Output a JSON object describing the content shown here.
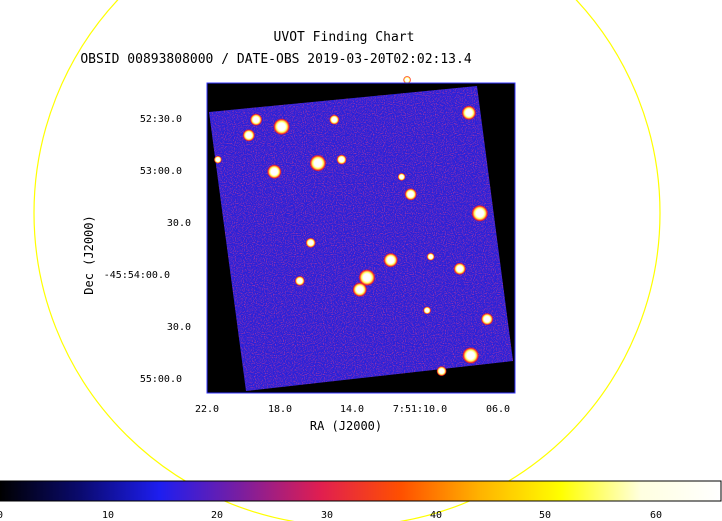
{
  "chart_data": {
    "type": "heatmap",
    "title": "UVOT Finding Chart",
    "subtitle": "OBSID 00893808000 / DATE-OBS 2019-03-20T02:02:13.4",
    "xlabel": "RA (J2000)",
    "ylabel": "Dec (J2000)",
    "x_ticks": [
      "22.0",
      "18.0",
      "14.0",
      "7:51:10.0",
      "06.0"
    ],
    "y_ticks": [
      "52:30.0",
      "53:00.0",
      "30.0",
      "-45:54:00.0",
      "30.0",
      "55:00.0"
    ],
    "colorbar": {
      "ticks": [
        "0",
        "10",
        "20",
        "30",
        "40",
        "50",
        "60"
      ],
      "range": [
        0,
        65
      ],
      "colormap": [
        "#000000",
        "#0a0a6e",
        "#1e1ef0",
        "#7a1ea0",
        "#e01e50",
        "#ff5000",
        "#ffb400",
        "#ffff00",
        "#ffffe0",
        "#ffffff"
      ]
    },
    "overlay_circle_color": "#ffff00",
    "sources": [
      {
        "ra": "7:51:11.0",
        "dec": "-45:52:08"
      },
      {
        "ra": "7:51:19.3",
        "dec": "-45:52:31"
      },
      {
        "ra": "7:51:17.9",
        "dec": "-45:52:35"
      },
      {
        "ra": "7:51:15.0",
        "dec": "-45:52:31"
      },
      {
        "ra": "7:51:07.6",
        "dec": "-45:52:27"
      },
      {
        "ra": "7:51:21.4",
        "dec": "-45:52:54"
      },
      {
        "ra": "7:51:19.7",
        "dec": "-45:52:40"
      },
      {
        "ra": "7:51:15.9",
        "dec": "-45:52:56"
      },
      {
        "ra": "7:51:14.6",
        "dec": "-45:52:54"
      },
      {
        "ra": "7:51:18.3",
        "dec": "-45:53:01"
      },
      {
        "ra": "7:51:11.3",
        "dec": "-45:53:04"
      },
      {
        "ra": "7:51:10.8",
        "dec": "-45:53:14"
      },
      {
        "ra": "7:51:07.0",
        "dec": "-45:53:25"
      },
      {
        "ra": "7:51:16.3",
        "dec": "-45:53:42"
      },
      {
        "ra": "7:51:11.9",
        "dec": "-45:53:52"
      },
      {
        "ra": "7:51:09.7",
        "dec": "-45:53:50"
      },
      {
        "ra": "7:51:08.1",
        "dec": "-45:53:57"
      },
      {
        "ra": "7:51:13.2",
        "dec": "-45:54:02"
      },
      {
        "ra": "7:51:16.9",
        "dec": "-45:54:04"
      },
      {
        "ra": "7:51:13.6",
        "dec": "-45:54:09"
      },
      {
        "ra": "7:51:09.9",
        "dec": "-45:54:21"
      },
      {
        "ra": "7:51:06.6",
        "dec": "-45:54:26"
      },
      {
        "ra": "7:51:07.5",
        "dec": "-45:54:47"
      },
      {
        "ra": "7:51:09.1",
        "dec": "-45:54:56"
      }
    ]
  }
}
